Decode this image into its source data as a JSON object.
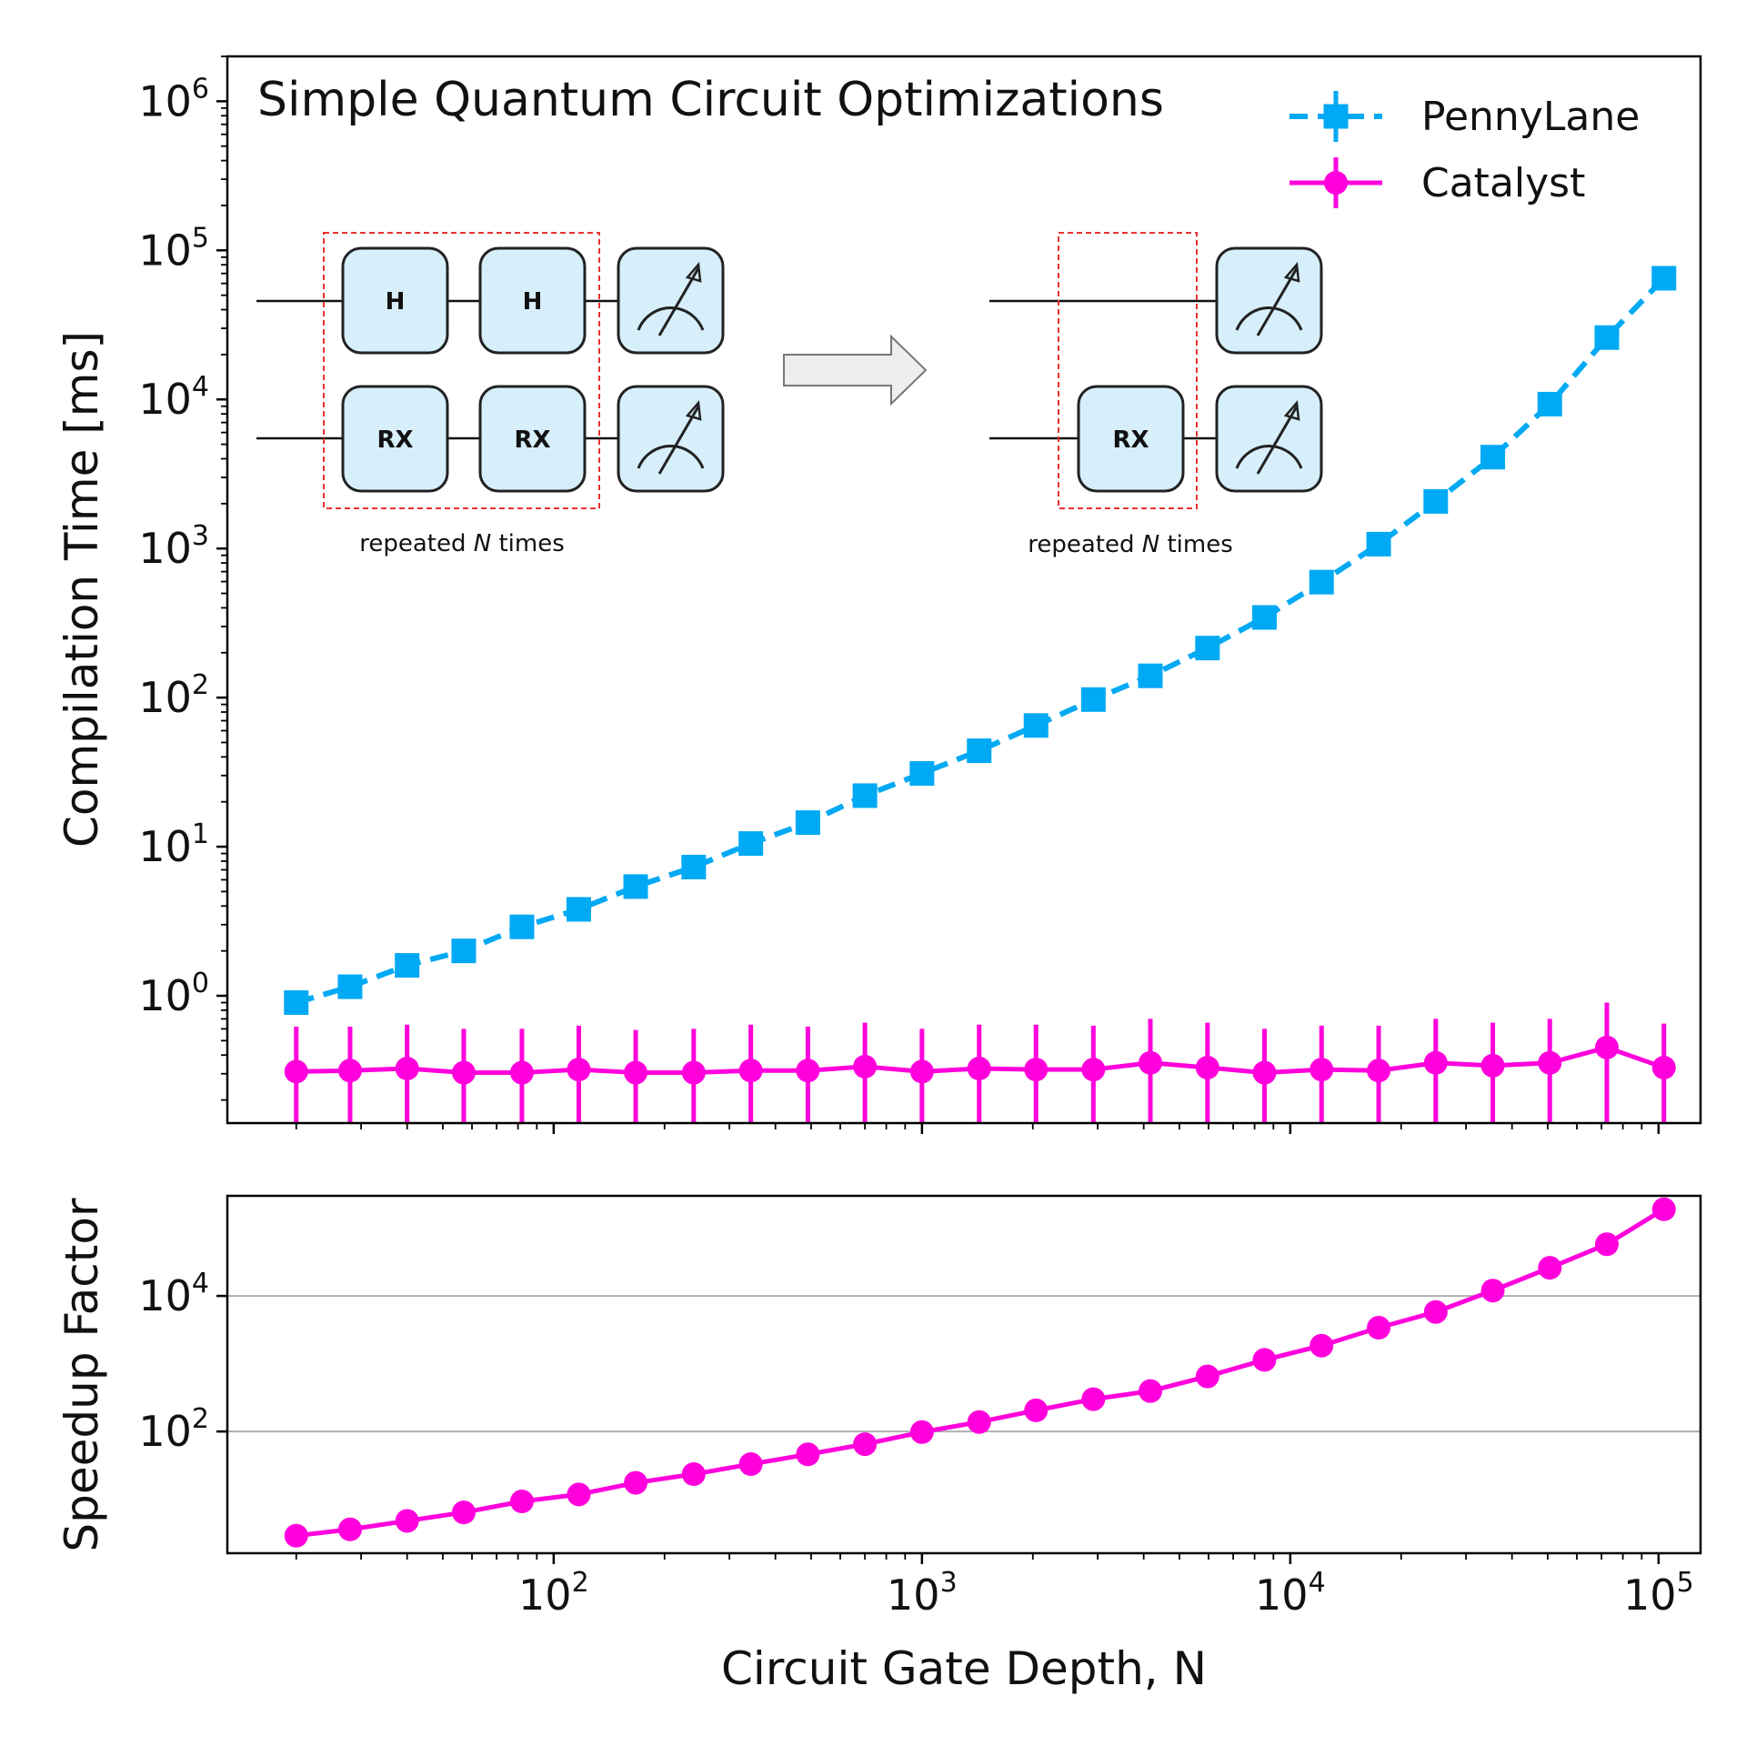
{
  "chart_data": [
    {
      "type": "line",
      "panel": "top",
      "ylabel": "Compilation Time [ms]",
      "xscale": "log",
      "yscale": "log",
      "xlim": [
        13,
        130000
      ],
      "ylim": [
        0.14,
        2000000
      ],
      "y_ticks": [
        1,
        10,
        100,
        1000,
        10000,
        100000,
        1000000
      ],
      "y_tick_labels": [
        {
          "base": "10",
          "exp": "0"
        },
        {
          "base": "10",
          "exp": "1"
        },
        {
          "base": "10",
          "exp": "2"
        },
        {
          "base": "10",
          "exp": "3"
        },
        {
          "base": "10",
          "exp": "4"
        },
        {
          "base": "10",
          "exp": "5"
        },
        {
          "base": "10",
          "exp": "6"
        }
      ],
      "annotation": "Simple Quantum Circuit Optimizations",
      "legend_position": "top-right",
      "grid": false,
      "x": [
        20,
        28,
        40,
        57,
        82,
        117,
        167,
        240,
        343,
        490,
        700,
        1000,
        1430,
        2040,
        2920,
        4170,
        5960,
        8510,
        12160,
        17380,
        24830,
        35470,
        50660,
        72370,
        103400
      ],
      "series": [
        {
          "name": "PennyLane",
          "color": "#00a9f4",
          "marker": "square",
          "line": "dashed",
          "values": [
            0.9,
            1.15,
            1.6,
            2.0,
            2.9,
            3.8,
            5.4,
            7.3,
            10.5,
            14.5,
            22,
            31,
            44,
            65,
            97,
            140,
            215,
            345,
            595,
            1070,
            2070,
            4100,
            9300,
            26000,
            65000
          ]
        },
        {
          "name": "Catalyst",
          "color": "#ff00dd",
          "marker": "circle",
          "line": "solid",
          "values": [
            0.31,
            0.315,
            0.325,
            0.305,
            0.305,
            0.32,
            0.305,
            0.305,
            0.315,
            0.315,
            0.335,
            0.31,
            0.325,
            0.32,
            0.32,
            0.355,
            0.33,
            0.305,
            0.32,
            0.315,
            0.355,
            0.34,
            0.355,
            0.45,
            0.33
          ],
          "err_low": 0.14,
          "err_high": [
            0.62,
            0.62,
            0.64,
            0.6,
            0.6,
            0.63,
            0.59,
            0.6,
            0.64,
            0.62,
            0.66,
            0.6,
            0.64,
            0.64,
            0.63,
            0.7,
            0.66,
            0.6,
            0.63,
            0.63,
            0.7,
            0.66,
            0.7,
            0.9,
            0.65
          ]
        }
      ],
      "inset": {
        "caption_prefix": "repeated ",
        "caption_var": "N",
        "caption_suffix": " times",
        "left_gates": [
          "H",
          "H",
          "RX",
          "RX"
        ],
        "right_gates": [
          "RX"
        ]
      }
    },
    {
      "type": "line",
      "panel": "bottom",
      "xlabel": "Circuit Gate Depth, N",
      "ylabel": "Speedup Factor",
      "xscale": "log",
      "yscale": "log",
      "xlim": [
        13,
        130000
      ],
      "ylim": [
        1.6,
        300000
      ],
      "x_ticks": [
        100,
        1000,
        10000,
        100000
      ],
      "x_tick_labels": [
        {
          "base": "10",
          "exp": "2"
        },
        {
          "base": "10",
          "exp": "3"
        },
        {
          "base": "10",
          "exp": "4"
        },
        {
          "base": "10",
          "exp": "5"
        }
      ],
      "y_ticks": [
        100,
        10000
      ],
      "y_tick_labels": [
        {
          "base": "10",
          "exp": "2"
        },
        {
          "base": "10",
          "exp": "4"
        }
      ],
      "grid": "horizontal",
      "x": [
        20,
        28,
        40,
        57,
        82,
        117,
        167,
        240,
        343,
        490,
        700,
        1000,
        1430,
        2040,
        2920,
        4170,
        5960,
        8510,
        12160,
        17380,
        24830,
        35470,
        50660,
        72370,
        103400
      ],
      "series": [
        {
          "name": "Speedup",
          "color": "#ff00dd",
          "marker": "circle",
          "line": "solid",
          "values": [
            2.9,
            3.6,
            4.8,
            6.4,
            9.3,
            11.8,
            17.5,
            23.5,
            33,
            46,
            65,
            98,
            138,
            205,
            300,
            395,
            650,
            1140,
            1850,
            3400,
            5800,
            12000,
            26000,
            58000,
            190000
          ]
        }
      ]
    }
  ]
}
